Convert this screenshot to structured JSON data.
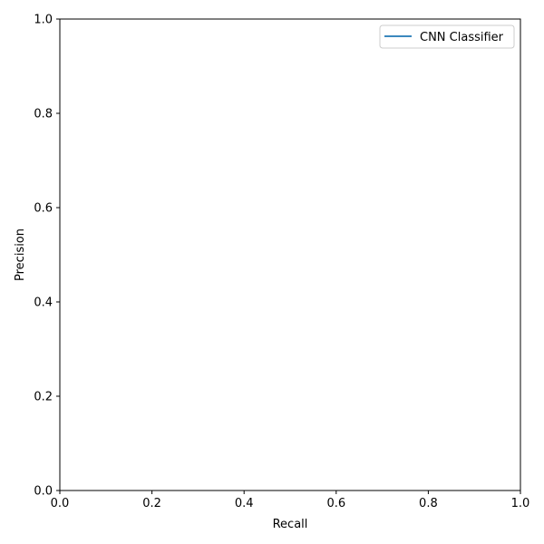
{
  "chart_data": {
    "type": "line",
    "title": "",
    "xlabel": "Recall",
    "ylabel": "Precision",
    "xlim": [
      0.0,
      1.0
    ],
    "ylim": [
      0.0,
      1.0
    ],
    "xticks": [
      "0.0",
      "0.2",
      "0.4",
      "0.6",
      "0.8",
      "1.0"
    ],
    "yticks": [
      "0.0",
      "0.2",
      "0.4",
      "0.6",
      "0.8",
      "1.0"
    ],
    "grid": false,
    "legend_position": "top-right",
    "series": [
      {
        "name": "CNN Classifier",
        "color": "#1f77b4",
        "x": [],
        "y": []
      }
    ]
  }
}
